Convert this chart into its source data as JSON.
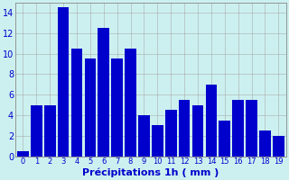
{
  "categories": [
    0,
    1,
    2,
    3,
    4,
    5,
    6,
    7,
    8,
    9,
    10,
    11,
    12,
    13,
    14,
    15,
    16,
    17,
    18,
    19
  ],
  "bar_values": [
    0.5,
    5,
    5,
    14.5,
    10.5,
    9.5,
    12.5,
    9.5,
    10.5,
    4,
    3,
    4.5,
    5.5,
    5,
    7,
    3.5,
    5.5,
    5.5,
    2.5,
    2.0
  ],
  "bar_color": "#0000cc",
  "background_color": "#ccf0f0",
  "grid_color": "#aaaaaa",
  "xlabel": "Précipitations 1h ( mm )",
  "xlabel_color": "#0000cc",
  "xlabel_fontsize": 8,
  "ylim": [
    0,
    15
  ],
  "yticks": [
    0,
    2,
    4,
    6,
    8,
    10,
    12,
    14
  ],
  "tick_fontsize": 7,
  "bar_width": 0.85
}
